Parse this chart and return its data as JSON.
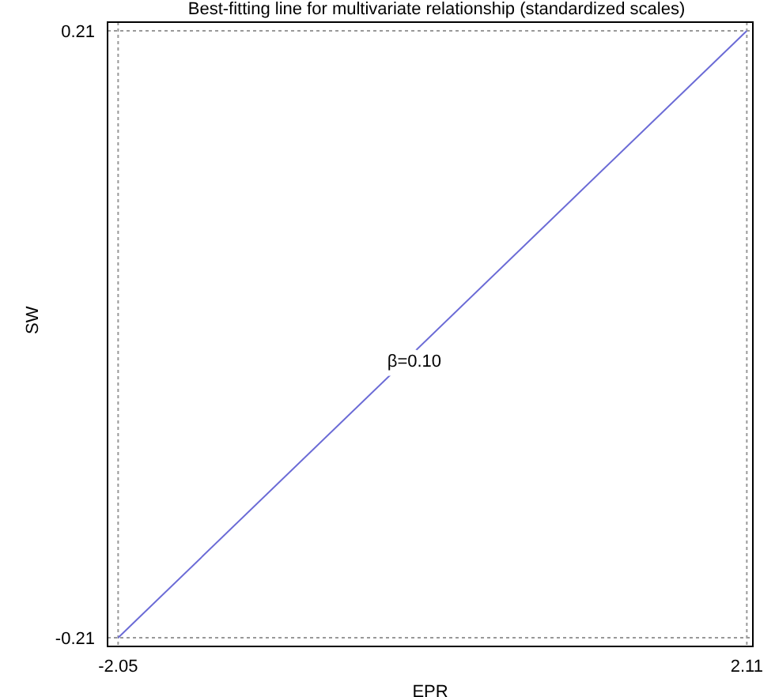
{
  "chart_data": {
    "type": "line",
    "title": "Best-fitting line for multivariate relationship (standardized scales)",
    "xlabel": "EPR",
    "ylabel": "SW",
    "x": [
      -2.05,
      2.11
    ],
    "series": [
      {
        "color": "#6b6bd6",
        "values": [
          -0.21,
          0.21
        ]
      }
    ],
    "xlim": [
      -2.12,
      2.15
    ],
    "ylim": [
      -0.216,
      0.216
    ],
    "xticks": [
      -2.05,
      2.11
    ],
    "yticks": [
      -0.21,
      0.21
    ],
    "grid": true,
    "marker": "none",
    "line_style": "solid",
    "annotations": [
      {
        "text": "β=0.10",
        "x": -0.09,
        "y": -0.018
      }
    ]
  }
}
